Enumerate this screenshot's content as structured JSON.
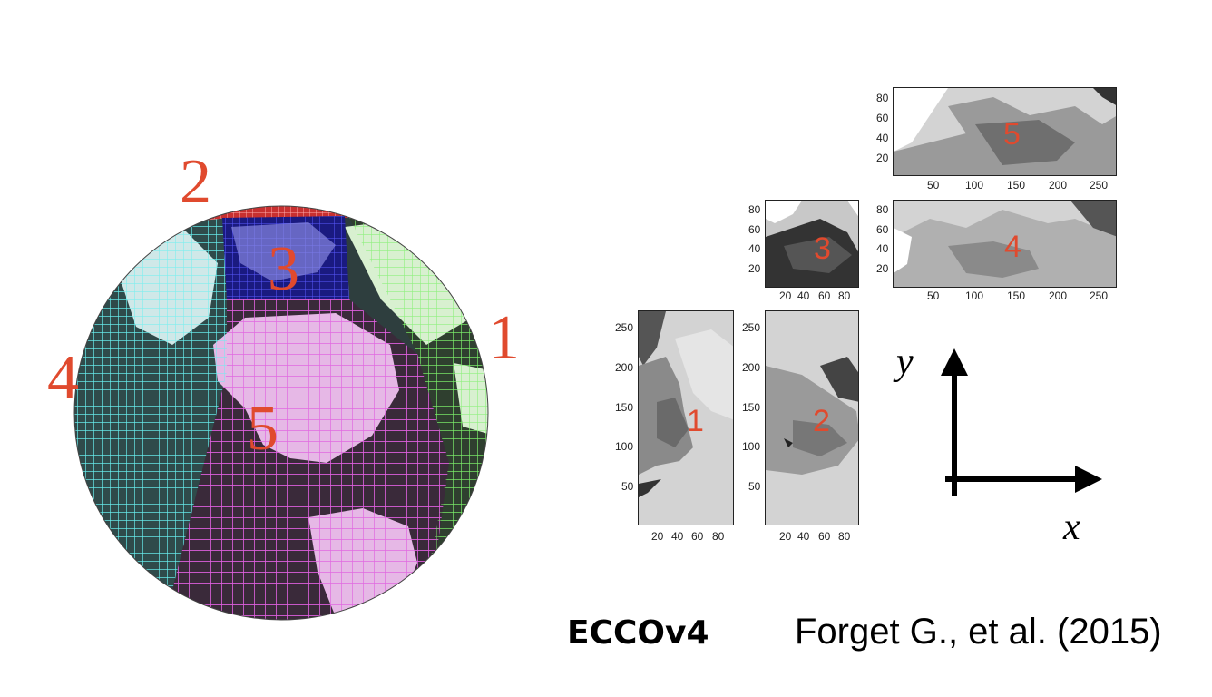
{
  "colors": {
    "face_number": "#e04a2e",
    "face1": "#7cf06a",
    "face2": "#f04848",
    "face3": "#2c2ca8",
    "face4": "#68f0f0",
    "face5": "#e060e0",
    "land": "#d8d8d8",
    "panel_bg": "#d3d3d3"
  },
  "globe": {
    "faces": [
      {
        "id": "face-1",
        "label": "1"
      },
      {
        "id": "face-2",
        "label": "2"
      },
      {
        "id": "face-3",
        "label": "3"
      },
      {
        "id": "face-4",
        "label": "4"
      },
      {
        "id": "face-5",
        "label": "5"
      }
    ]
  },
  "tiles": {
    "tile1": {
      "label": "1",
      "x_ticks": [
        "20",
        "40",
        "60",
        "80"
      ],
      "y_ticks": [
        "250",
        "200",
        "150",
        "100",
        "50"
      ]
    },
    "tile2": {
      "label": "2",
      "x_ticks": [
        "20",
        "40",
        "60",
        "80"
      ],
      "y_ticks": [
        "250",
        "200",
        "150",
        "100",
        "50"
      ]
    },
    "tile3": {
      "label": "3",
      "x_ticks": [
        "20",
        "40",
        "60",
        "80"
      ],
      "y_ticks": [
        "80",
        "60",
        "40",
        "20"
      ]
    },
    "tile4": {
      "label": "4",
      "x_ticks": [
        "50",
        "100",
        "150",
        "200",
        "250"
      ],
      "y_ticks": [
        "80",
        "60",
        "40",
        "20"
      ]
    },
    "tile5": {
      "label": "5",
      "x_ticks": [
        "50",
        "100",
        "150",
        "200",
        "250"
      ],
      "y_ticks": [
        "80",
        "60",
        "40",
        "20"
      ]
    }
  },
  "axes": {
    "y_label": "y",
    "x_label": "x"
  },
  "caption": {
    "model": "ECCOv4",
    "citation": "Forget G., et al. (2015)"
  }
}
